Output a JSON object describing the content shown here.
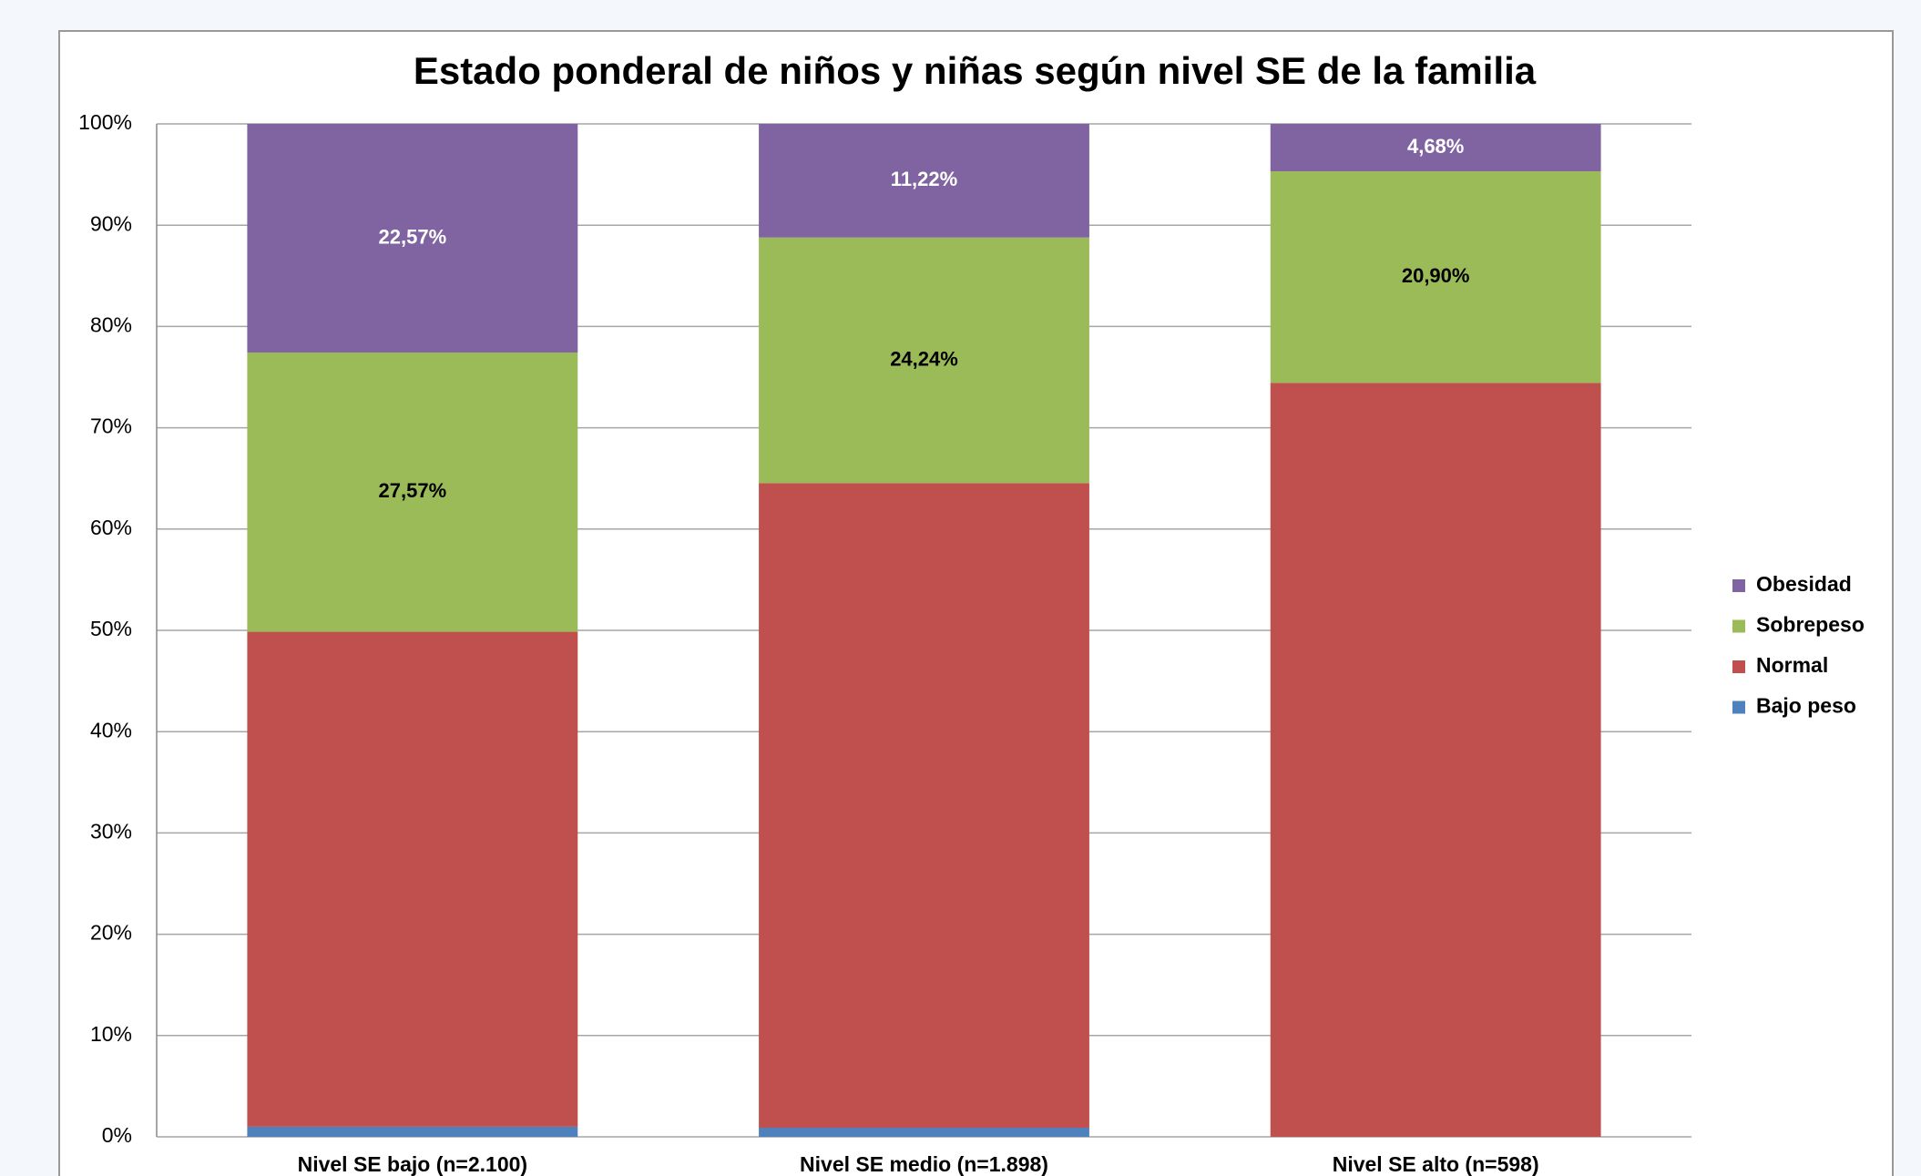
{
  "chart_data": {
    "type": "stacked_bar",
    "title": "Estado ponderal de niños y niñas según nivel SE de la familia",
    "categories": [
      "Nivel SE bajo (n=2.100)",
      "Nivel SE medio (n=1.898)",
      "Nivel SE alto (n=598)"
    ],
    "series": [
      {
        "name": "Bajo peso",
        "color": "#4f81bd",
        "values": [
          1.0,
          0.9,
          0
        ]
      },
      {
        "name": "Normal",
        "color": "#c0504d",
        "values": [
          48.86,
          63.64,
          74.42
        ]
      },
      {
        "name": "Sobrepeso",
        "color": "#9bbb59",
        "values": [
          27.57,
          24.24,
          20.9
        ],
        "value_labels": [
          "27,57%",
          "24,24%",
          "20,90%"
        ]
      },
      {
        "name": "Obesidad",
        "color": "#8064a2",
        "values": [
          22.57,
          11.22,
          4.68
        ],
        "value_labels": [
          "22,57%",
          "11,22%",
          "4,68%"
        ]
      }
    ],
    "ylim": [
      0,
      100
    ],
    "yticks": [
      {
        "value": 0,
        "label": "0%"
      },
      {
        "value": 10,
        "label": "10%"
      },
      {
        "value": 20,
        "label": "20%"
      },
      {
        "value": 30,
        "label": "30%"
      },
      {
        "value": 40,
        "label": "40%"
      },
      {
        "value": 50,
        "label": "50%"
      },
      {
        "value": 60,
        "label": "60%"
      },
      {
        "value": 70,
        "label": "70%"
      },
      {
        "value": 80,
        "label": "80%"
      },
      {
        "value": 90,
        "label": "90%"
      },
      {
        "value": 100,
        "label": "100%"
      }
    ],
    "grid": true,
    "legend": "right"
  }
}
